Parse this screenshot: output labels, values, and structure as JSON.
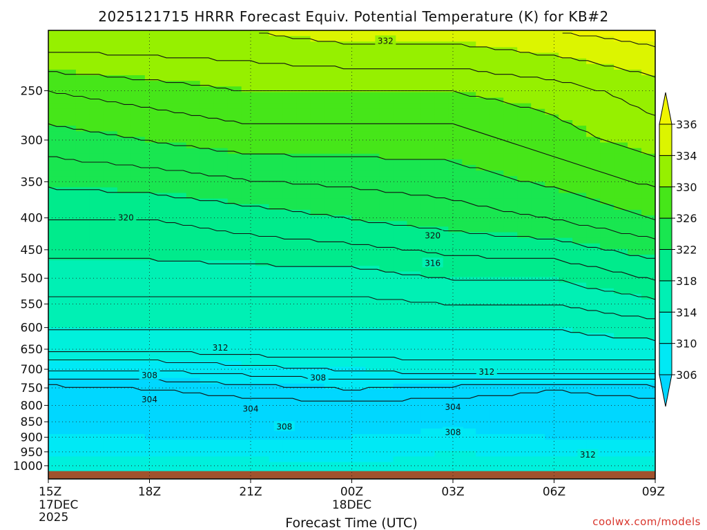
{
  "chart_data": {
    "type": "contour",
    "title": "2025121715 HRRR Forecast Equiv. Potential Temperature (K) for KB#2",
    "xlabel": "Forecast Time (UTC)",
    "x_ticks": [
      {
        "hour": 0,
        "label": "15Z",
        "sub1": "17DEC",
        "sub2": "2025"
      },
      {
        "hour": 3,
        "label": "18Z"
      },
      {
        "hour": 6,
        "label": "21Z"
      },
      {
        "hour": 9,
        "label": "00Z",
        "sub1": "18DEC"
      },
      {
        "hour": 12,
        "label": "03Z"
      },
      {
        "hour": 15,
        "label": "06Z"
      },
      {
        "hour": 18,
        "label": "09Z"
      }
    ],
    "xlim_hours": [
      0,
      18
    ],
    "y_scale": "log-pressure (reversed)",
    "ylim_hPa": [
      1050,
      200
    ],
    "y_ticks": [
      250,
      300,
      350,
      400,
      450,
      500,
      550,
      600,
      650,
      700,
      750,
      800,
      850,
      900,
      950,
      1000
    ],
    "grid": "dotted",
    "colorbar": {
      "levels": [
        306,
        310,
        314,
        318,
        322,
        326,
        330,
        334,
        336
      ],
      "tick_labels": [
        "306",
        "310",
        "314",
        "318",
        "322",
        "326",
        "330",
        "334",
        "336"
      ],
      "colors": [
        "#00d7ff",
        "#00e9f5",
        "#00f0dc",
        "#00f0b4",
        "#00eb8c",
        "#19e650",
        "#46e619",
        "#96f000",
        "#dcf500",
        "#f0f500"
      ],
      "extend": "both"
    },
    "contour_labels": [
      {
        "t": 2.3,
        "p": 400,
        "text": "320"
      },
      {
        "t": 11.4,
        "p": 427,
        "text": "320"
      },
      {
        "t": 11.4,
        "p": 473,
        "text": "316"
      },
      {
        "t": 10.0,
        "p": 208,
        "text": "332"
      },
      {
        "t": 5.1,
        "p": 647,
        "text": "312"
      },
      {
        "t": 13.0,
        "p": 707,
        "text": "312"
      },
      {
        "t": 16.0,
        "p": 960,
        "text": "312"
      },
      {
        "t": 3.0,
        "p": 716,
        "text": "308"
      },
      {
        "t": 8.0,
        "p": 723,
        "text": "308"
      },
      {
        "t": 7.0,
        "p": 866,
        "text": "308"
      },
      {
        "t": 12.0,
        "p": 884,
        "text": "308"
      },
      {
        "t": 3.0,
        "p": 783,
        "text": "304"
      },
      {
        "t": 6.0,
        "p": 810,
        "text": "304"
      },
      {
        "t": 12.0,
        "p": 805,
        "text": "304"
      }
    ],
    "sample_columns": {
      "hours": [
        0,
        3,
        6,
        9,
        12,
        15,
        18
      ],
      "theta_e_profile_K": {
        "1000": [
          311,
          311,
          311,
          310,
          311,
          312,
          312
        ],
        "950": [
          309,
          309,
          309,
          309,
          310,
          309,
          309
        ],
        "900": [
          307,
          306,
          306,
          306,
          307,
          306,
          306
        ],
        "850": [
          304,
          303,
          304,
          305,
          305,
          304,
          304
        ],
        "800": [
          302,
          302,
          303,
          303,
          303,
          303,
          303
        ],
        "750": [
          303,
          304,
          305,
          306,
          305,
          304,
          305
        ],
        "700": [
          308,
          308,
          309,
          310,
          311,
          311,
          311
        ],
        "650": [
          312,
          312,
          313,
          313,
          313,
          313,
          313
        ],
        "600": [
          314,
          314,
          314,
          314,
          314,
          314,
          315
        ],
        "500": [
          317,
          317,
          317,
          317,
          318,
          318,
          320
        ],
        "400": [
          320,
          320,
          321,
          322,
          323,
          324,
          326
        ],
        "300": [
          325,
          326,
          327,
          327,
          327,
          329,
          331
        ],
        "250": [
          328,
          329,
          330,
          330,
          330,
          331,
          333
        ],
        "200": [
          334,
          334,
          334,
          335,
          335,
          336,
          337
        ]
      }
    }
  },
  "credit": "coolwx.com/models"
}
